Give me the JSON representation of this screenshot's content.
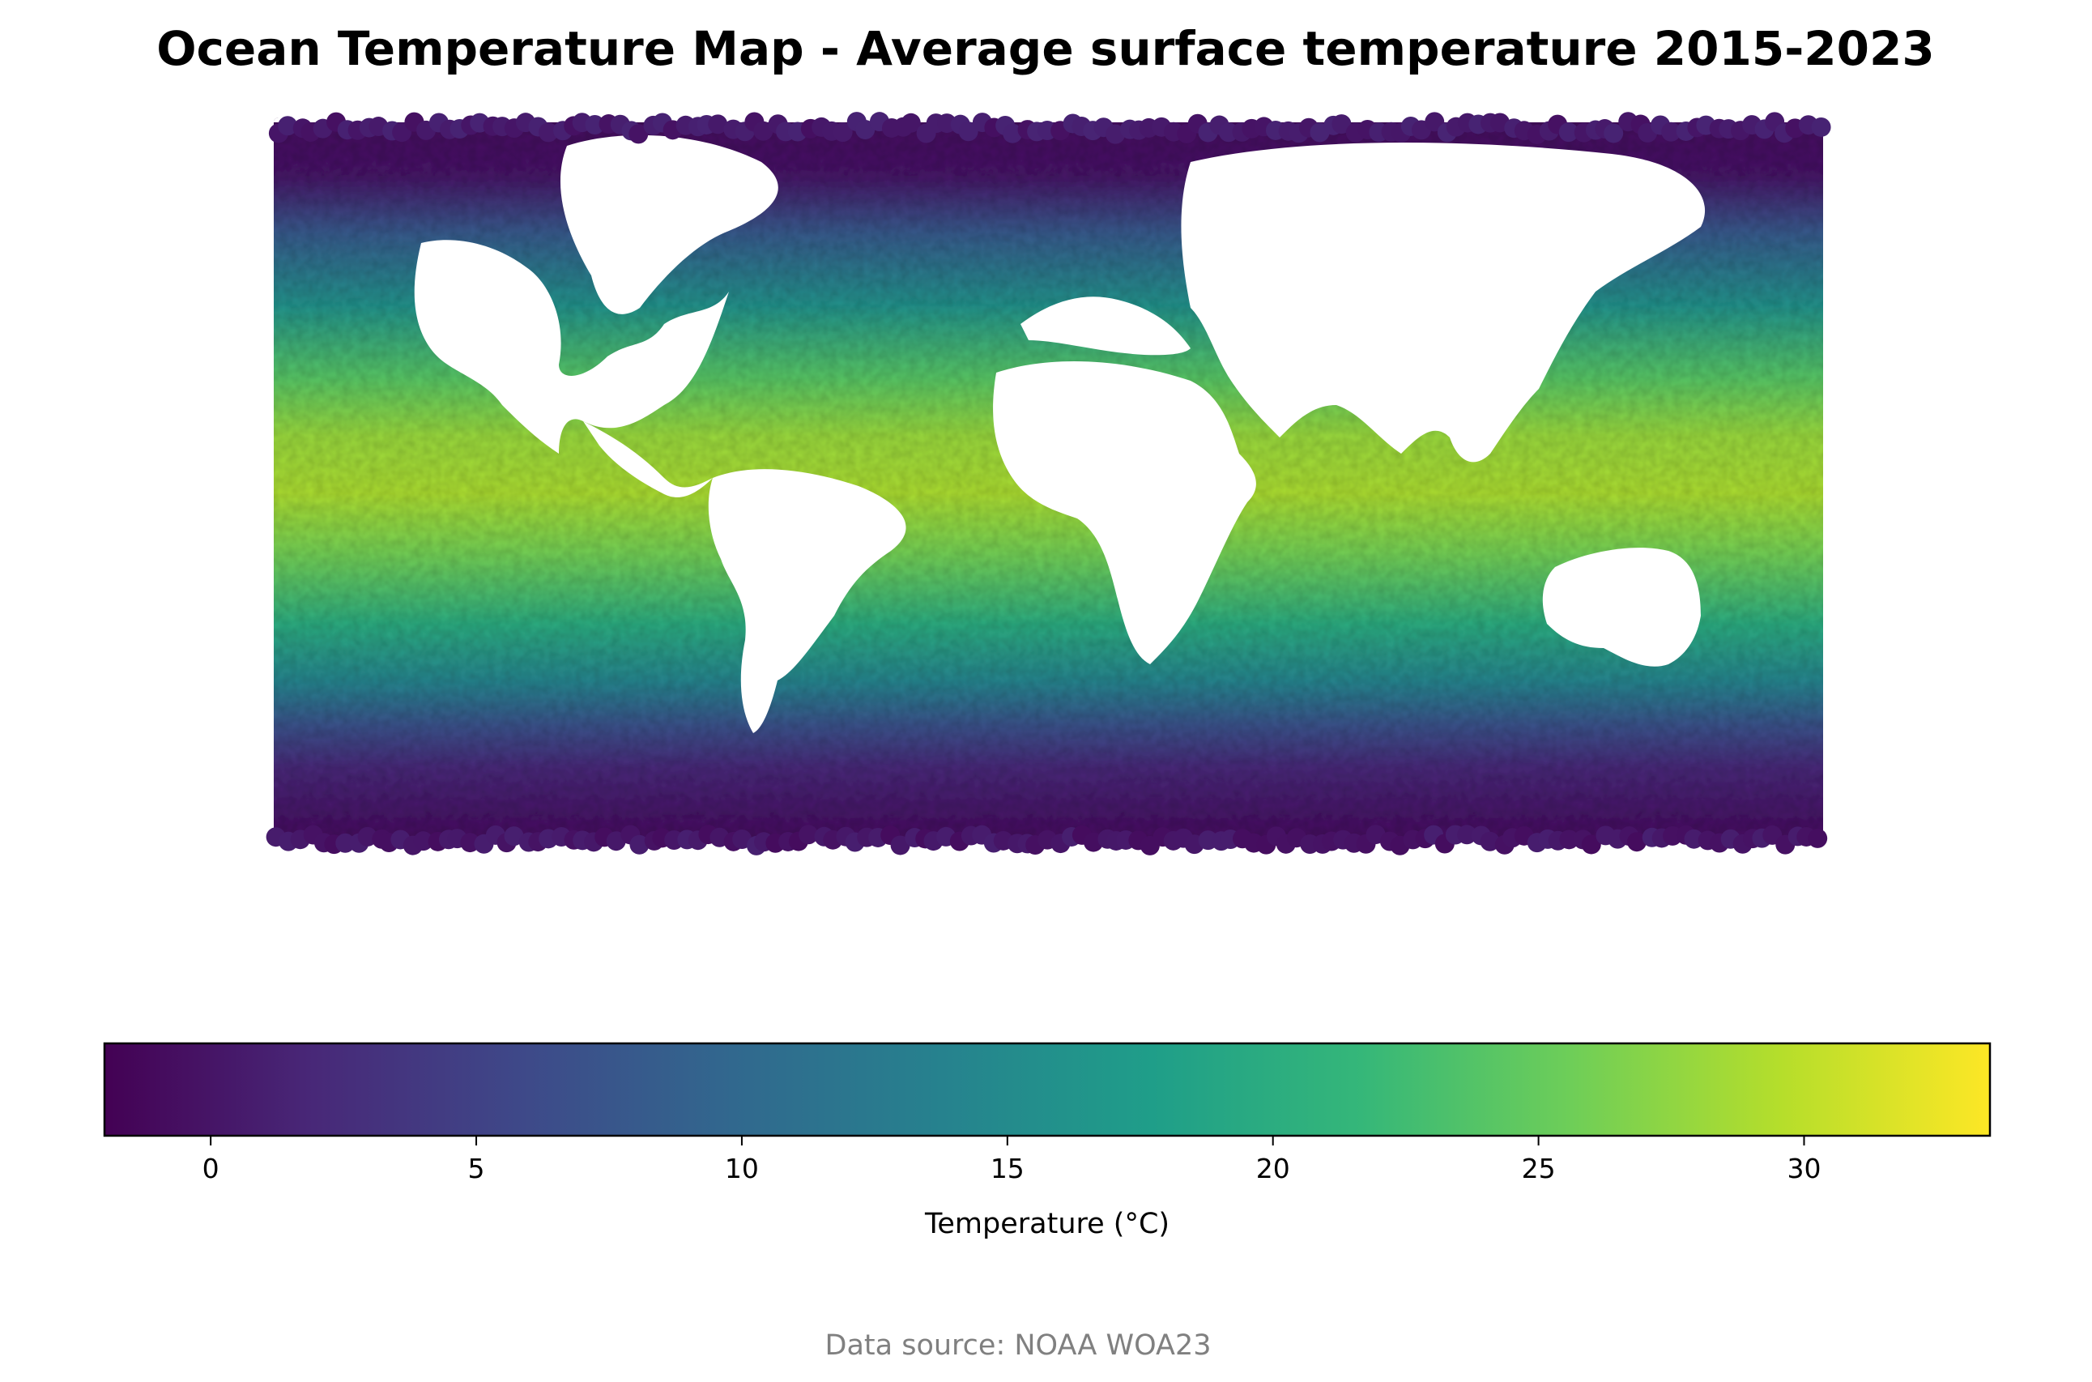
{
  "title": "Ocean Temperature Map - Average surface temperature 2015-2023",
  "source": "Data source: NOAA WOA23",
  "colormap": "viridis",
  "colormap_stops": [
    "#440154",
    "#482878",
    "#3e4989",
    "#31688e",
    "#26828e",
    "#1f9e89",
    "#35b779",
    "#6ece58",
    "#b5de2b",
    "#fde725"
  ],
  "chart_data": {
    "type": "scatter",
    "x_range": [
      -180,
      180
    ],
    "y_range": [
      -80,
      85
    ],
    "value_label": "Temperature (°C)",
    "colorbar": {
      "label": "Temperature (°C)",
      "range": [
        -2,
        33.5
      ],
      "ticks": [
        0,
        5,
        10,
        15,
        20,
        25,
        30
      ],
      "orientation": "horizontal",
      "placement": "bottom"
    },
    "description_of_points": "Dense point cloud covering ocean areas only; temperature peaks near equator (~30°C) and falls to ~-1°C near poles.",
    "continents_blank": true,
    "grid": false,
    "axes_visible": false
  }
}
